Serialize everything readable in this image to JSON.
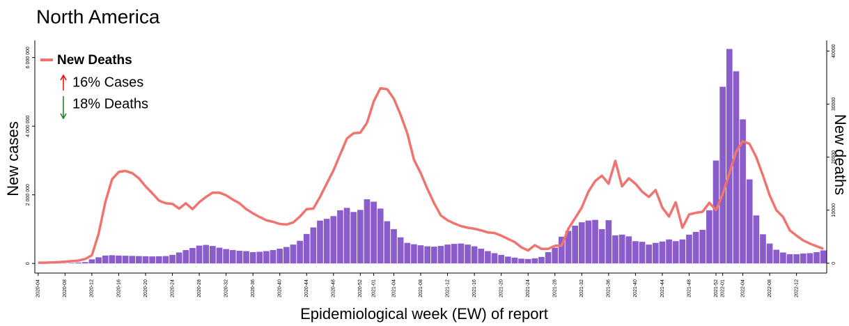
{
  "chart_data": {
    "type": "bar-line",
    "title": "North America",
    "x_label": "Epidemiological week (EW) of report",
    "y_label": "New cases",
    "y2_label": "New deaths",
    "annotations": [
      {
        "text": "16% Cases",
        "color": "#ff0000"
      },
      {
        "text": "18% Deaths",
        "color": "#1a7a1a"
      }
    ],
    "categories": [
      "2020-04",
      null,
      null,
      null,
      "2020-08",
      null,
      null,
      null,
      "2020-12",
      null,
      null,
      null,
      "2020-16",
      null,
      null,
      null,
      "2020-20",
      null,
      null,
      null,
      "2020-24",
      null,
      null,
      null,
      "2020-28",
      null,
      null,
      null,
      "2020-32",
      null,
      null,
      null,
      "2020-36",
      null,
      null,
      null,
      "2020-40",
      null,
      null,
      null,
      "2020-44",
      null,
      null,
      null,
      "2020-48",
      null,
      null,
      null,
      "2020-52",
      null,
      "2021-01",
      null,
      null,
      "2021-04",
      null,
      null,
      null,
      "2021-08",
      null,
      null,
      null,
      "2021-12",
      null,
      null,
      null,
      "2021-16",
      null,
      null,
      null,
      "2021-20",
      null,
      null,
      null,
      "2021-24",
      null,
      null,
      null,
      "2021-28",
      null,
      null,
      null,
      "2021-32",
      null,
      null,
      null,
      "2021-36",
      null,
      null,
      null,
      "2021-40",
      null,
      null,
      null,
      "2021-44",
      null,
      null,
      null,
      "2021-48",
      null,
      null,
      null,
      "2021-52",
      "2022-01",
      null,
      null,
      "2022-04",
      null,
      null,
      null,
      "2022-08",
      null,
      null,
      null,
      "2022-12",
      null,
      null,
      null,
      null
    ],
    "series": [
      {
        "type": "bar",
        "color": "#8b5ccc",
        "values": [
          1000,
          2000,
          3000,
          5000,
          8000,
          15000,
          25000,
          40000,
          120000,
          180000,
          230000,
          240000,
          230000,
          225000,
          220000,
          215000,
          210000,
          205000,
          210000,
          215000,
          250000,
          320000,
          390000,
          450000,
          520000,
          540000,
          510000,
          460000,
          420000,
          390000,
          370000,
          360000,
          330000,
          340000,
          360000,
          390000,
          430000,
          480000,
          550000,
          660000,
          860000,
          1050000,
          1250000,
          1300000,
          1380000,
          1550000,
          1620000,
          1500000,
          1560000,
          1870000,
          1800000,
          1600000,
          1230000,
          1000000,
          760000,
          600000,
          560000,
          530000,
          500000,
          490000,
          510000,
          550000,
          570000,
          580000,
          550000,
          500000,
          430000,
          360000,
          300000,
          250000,
          200000,
          170000,
          140000,
          130000,
          150000,
          190000,
          330000,
          460000,
          780000,
          950000,
          1100000,
          1200000,
          1250000,
          1270000,
          1000000,
          1260000,
          820000,
          840000,
          790000,
          650000,
          630000,
          550000,
          600000,
          640000,
          700000,
          650000,
          700000,
          840000,
          920000,
          980000,
          1550000,
          3000000,
          5150000,
          6250000,
          5600000,
          4200000,
          2450000,
          1400000,
          850000,
          580000,
          400000,
          320000,
          270000,
          270000,
          290000,
          300000,
          330000,
          380000
        ]
      },
      {
        "type": "line",
        "name": "New Deaths",
        "axis": "y2",
        "color": "#f0736e",
        "values": [
          100,
          100,
          150,
          200,
          300,
          400,
          500,
          800,
          1500,
          5500,
          11500,
          15800,
          17200,
          17400,
          17000,
          16000,
          14500,
          13200,
          11800,
          11300,
          11200,
          10300,
          11300,
          10200,
          11500,
          12500,
          13300,
          13300,
          12800,
          12000,
          11300,
          10200,
          9400,
          8700,
          8100,
          7800,
          7400,
          7300,
          7700,
          8800,
          10200,
          10300,
          12500,
          15000,
          17500,
          20500,
          23500,
          24500,
          24600,
          26500,
          30500,
          33000,
          32800,
          31000,
          28000,
          24500,
          19500,
          17000,
          14000,
          11300,
          9000,
          8100,
          7500,
          7000,
          6700,
          6500,
          6200,
          5800,
          5700,
          5200,
          4600,
          4000,
          3000,
          2400,
          3400,
          2700,
          2700,
          3300,
          3300,
          6500,
          8500,
          10500,
          13500,
          15500,
          16500,
          15000,
          19300,
          14500,
          16000,
          15000,
          13500,
          12500,
          13800,
          10500,
          8800,
          11500,
          6700,
          9200,
          9500,
          9700,
          11400,
          10000,
          13000,
          17000,
          21000,
          23000,
          22500,
          20000,
          16500,
          12800,
          10000,
          8700,
          6200,
          5200,
          4300,
          3700,
          3200,
          2700
        ]
      }
    ],
    "ylim": [
      -280000,
      6500000
    ],
    "yticks": [
      0,
      {
        "value": 2000000,
        "label": "2 000 000"
      },
      {
        "value": 4000000,
        "label": "4 000 000"
      },
      {
        "value": 6000000,
        "label": "6 000 000"
      }
    ],
    "y2lim": [
      -1850,
      42000
    ],
    "y2ticks": [
      0,
      10000,
      20000,
      30000,
      40000
    ],
    "grid": false,
    "legend": "top-left"
  }
}
